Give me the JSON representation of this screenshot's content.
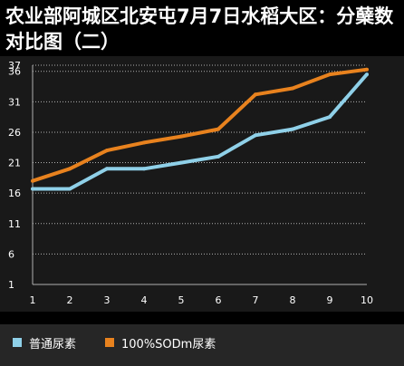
{
  "colors": {
    "background": "#000000",
    "plot_background": "#191919",
    "legend_background": "#262626",
    "grid": "#b0b0b0",
    "text": "#ffffff",
    "series_1": "#8fd0e8",
    "series_2": "#e8821e"
  },
  "chart_data": {
    "type": "line",
    "title": "农业部阿城区北安屯7月7日水稻大区：分蘖数对比图（二）",
    "xlabel": "",
    "ylabel": "",
    "x": [
      1,
      2,
      3,
      4,
      5,
      6,
      7,
      8,
      9,
      10
    ],
    "x_tick_labels": [
      "1",
      "2",
      "3",
      "4",
      "5",
      "6",
      "7",
      "8",
      "9",
      "10"
    ],
    "y_tick_labels": [
      "1",
      "6",
      "11",
      "16",
      "21",
      "26",
      "31",
      "36",
      "37"
    ],
    "ylim": [
      1,
      37
    ],
    "grid": "horizontal dotted",
    "legend_position": "bottom",
    "series": [
      {
        "name": "普通尿素",
        "values": [
          16.7,
          16.7,
          20,
          20,
          21,
          22,
          25.5,
          26.5,
          28.5,
          35.5
        ],
        "color": "#8fd0e8"
      },
      {
        "name": "100%SODm尿素",
        "values": [
          18,
          20,
          23,
          24.3,
          25.3,
          26.5,
          32.2,
          33.2,
          35.5,
          36.3
        ],
        "color": "#e8821e"
      }
    ]
  }
}
